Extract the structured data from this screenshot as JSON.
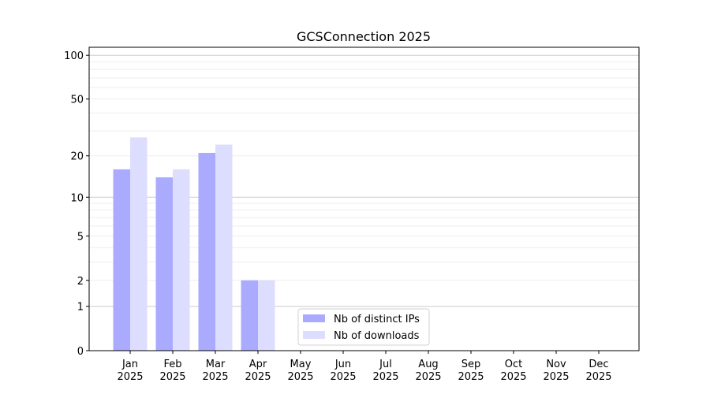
{
  "chart_data": {
    "type": "bar",
    "title": "GCSConnection 2025",
    "xlabel": "",
    "ylabel": "",
    "yscale": "symlog",
    "ylim": [
      0,
      113
    ],
    "yticks": [
      0,
      1,
      2,
      5,
      10,
      20,
      50,
      100
    ],
    "grid": true,
    "legend_position": "bottom-center",
    "categories": [
      "Jan\n2025",
      "Feb\n2025",
      "Mar\n2025",
      "Apr\n2025",
      "May\n2025",
      "Jun\n2025",
      "Jul\n2025",
      "Aug\n2025",
      "Sep\n2025",
      "Oct\n2025",
      "Nov\n2025",
      "Dec\n2025"
    ],
    "series": [
      {
        "name": "Nb of distinct IPs",
        "color": "#aaaaff",
        "values": [
          16,
          14,
          21,
          2,
          0,
          0,
          0,
          0,
          0,
          0,
          0,
          0
        ]
      },
      {
        "name": "Nb of downloads",
        "color": "#ddddff",
        "values": [
          27,
          16,
          24,
          2,
          0,
          0,
          0,
          0,
          0,
          0,
          0,
          0
        ]
      }
    ]
  }
}
